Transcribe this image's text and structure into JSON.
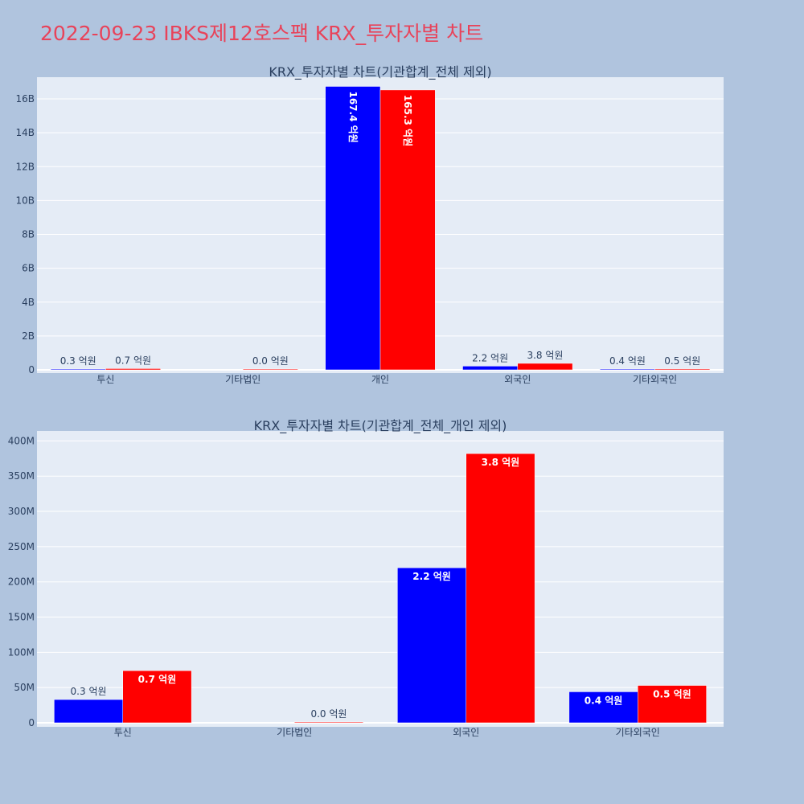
{
  "title": "2022-09-23 IBKS제12호스팩 KRX_투자자별 차트",
  "colors": {
    "background": "#b0c4de",
    "title": "#e8435a",
    "buy": "#0000ff",
    "sell": "#ff0000"
  },
  "chart_data": [
    {
      "type": "bar",
      "title": "KRX_투자자별 차트(기관합계_전체 제외)",
      "categories": [
        "투신",
        "기타법인",
        "개인",
        "외국인",
        "기타외국인"
      ],
      "series": [
        {
          "color": "#0000ff",
          "values": [
            33000000,
            0,
            16740000000,
            220000000,
            44000000
          ],
          "labels": [
            "0.3 억원",
            "",
            "167.4 억원",
            "2.2 억원",
            "0.4 억원"
          ]
        },
        {
          "color": "#ff0000",
          "values": [
            74000000,
            1000000,
            16530000000,
            382000000,
            53000000
          ],
          "labels": [
            "0.7 억원",
            "0.0 억원",
            "165.3 억원",
            "3.8 억원",
            "0.5 억원"
          ]
        }
      ],
      "ylim": [
        0,
        17000000000
      ],
      "yticks": [
        0,
        2000000000,
        4000000000,
        6000000000,
        8000000000,
        10000000000,
        12000000000,
        14000000000,
        16000000000
      ],
      "yticklabels": [
        "0",
        "2B",
        "4B",
        "6B",
        "8B",
        "10B",
        "12B",
        "14B",
        "16B"
      ],
      "bar_label_style": "rotated-inside-when-large",
      "grid": true
    },
    {
      "type": "bar",
      "title": "KRX_투자자별 차트(기관합계_전체_개인 제외)",
      "categories": [
        "투신",
        "기타법인",
        "외국인",
        "기타외국인"
      ],
      "series": [
        {
          "color": "#0000ff",
          "values": [
            33000000,
            0,
            220000000,
            44000000
          ],
          "labels": [
            "0.3 억원",
            "",
            "2.2 억원",
            "0.4 억원"
          ]
        },
        {
          "color": "#ff0000",
          "values": [
            74000000,
            1000000,
            382000000,
            53000000
          ],
          "labels": [
            "0.7 억원",
            "0.0 억원",
            "3.8 억원",
            "0.5 억원"
          ]
        }
      ],
      "ylim": [
        0,
        405000000
      ],
      "yticks": [
        0,
        50000000,
        100000000,
        150000000,
        200000000,
        250000000,
        300000000,
        350000000,
        400000000
      ],
      "yticklabels": [
        "0",
        "50M",
        "100M",
        "150M",
        "200M",
        "250M",
        "300M",
        "350M",
        "400M"
      ],
      "bar_label_style": "inside-top",
      "grid": true
    }
  ]
}
